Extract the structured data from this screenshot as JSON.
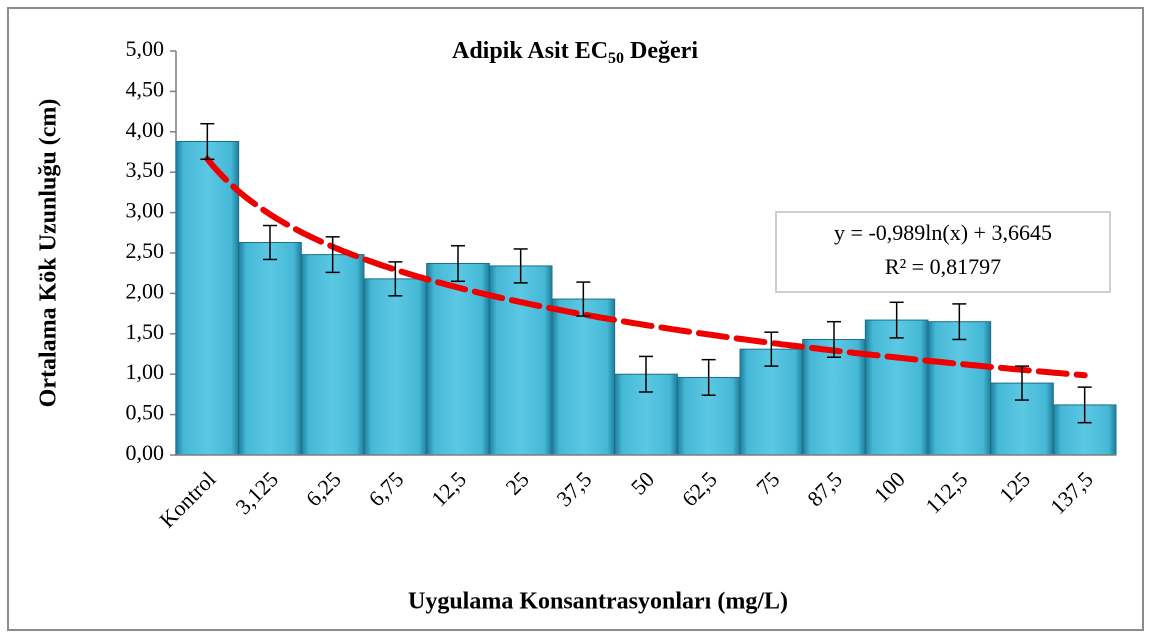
{
  "chart_data": {
    "type": "bar",
    "title": [
      "Adipik Asit EC",
      "50",
      " Değeri"
    ],
    "x_label": "Uygulama Konsantrasyonları (mg/L)",
    "y_label": "Ortalama Kök Uzunluğu (cm)",
    "categories": [
      "Kontrol",
      "3,125",
      "6,25",
      "6,75",
      "12,5",
      "25",
      "37,5",
      "50",
      "62,5",
      "75",
      "87,5",
      "100",
      "112,5",
      "125",
      "137,5"
    ],
    "values": [
      3.88,
      2.63,
      2.48,
      2.18,
      2.37,
      2.34,
      1.93,
      1.0,
      0.96,
      1.31,
      1.43,
      1.67,
      1.65,
      0.89,
      0.62
    ],
    "errors": [
      0.22,
      0.21,
      0.22,
      0.21,
      0.22,
      0.21,
      0.21,
      0.22,
      0.22,
      0.21,
      0.22,
      0.22,
      0.22,
      0.21,
      0.22
    ],
    "color": "#45b8d6",
    "ylim": [
      0,
      5
    ],
    "yticks": [
      {
        "value": 0,
        "label": "0,00"
      },
      {
        "value": 0.5,
        "label": "0,50"
      },
      {
        "value": 1,
        "label": "1,00"
      },
      {
        "value": 1.5,
        "label": "1,50"
      },
      {
        "value": 2,
        "label": "2,00"
      },
      {
        "value": 2.5,
        "label": "2,50"
      },
      {
        "value": 3,
        "label": "3,00"
      },
      {
        "value": 3.5,
        "label": "3,50"
      },
      {
        "value": 4,
        "label": "4,00"
      },
      {
        "value": 4.5,
        "label": "4,50"
      },
      {
        "value": 5,
        "label": "5,00"
      }
    ],
    "trendline": {
      "equation": "y = -0,989ln(x) + 3,6645",
      "r2_label": "R² = 0,81797",
      "slope": -0.989,
      "intercept": 3.6645,
      "color": "#ee0000"
    }
  }
}
